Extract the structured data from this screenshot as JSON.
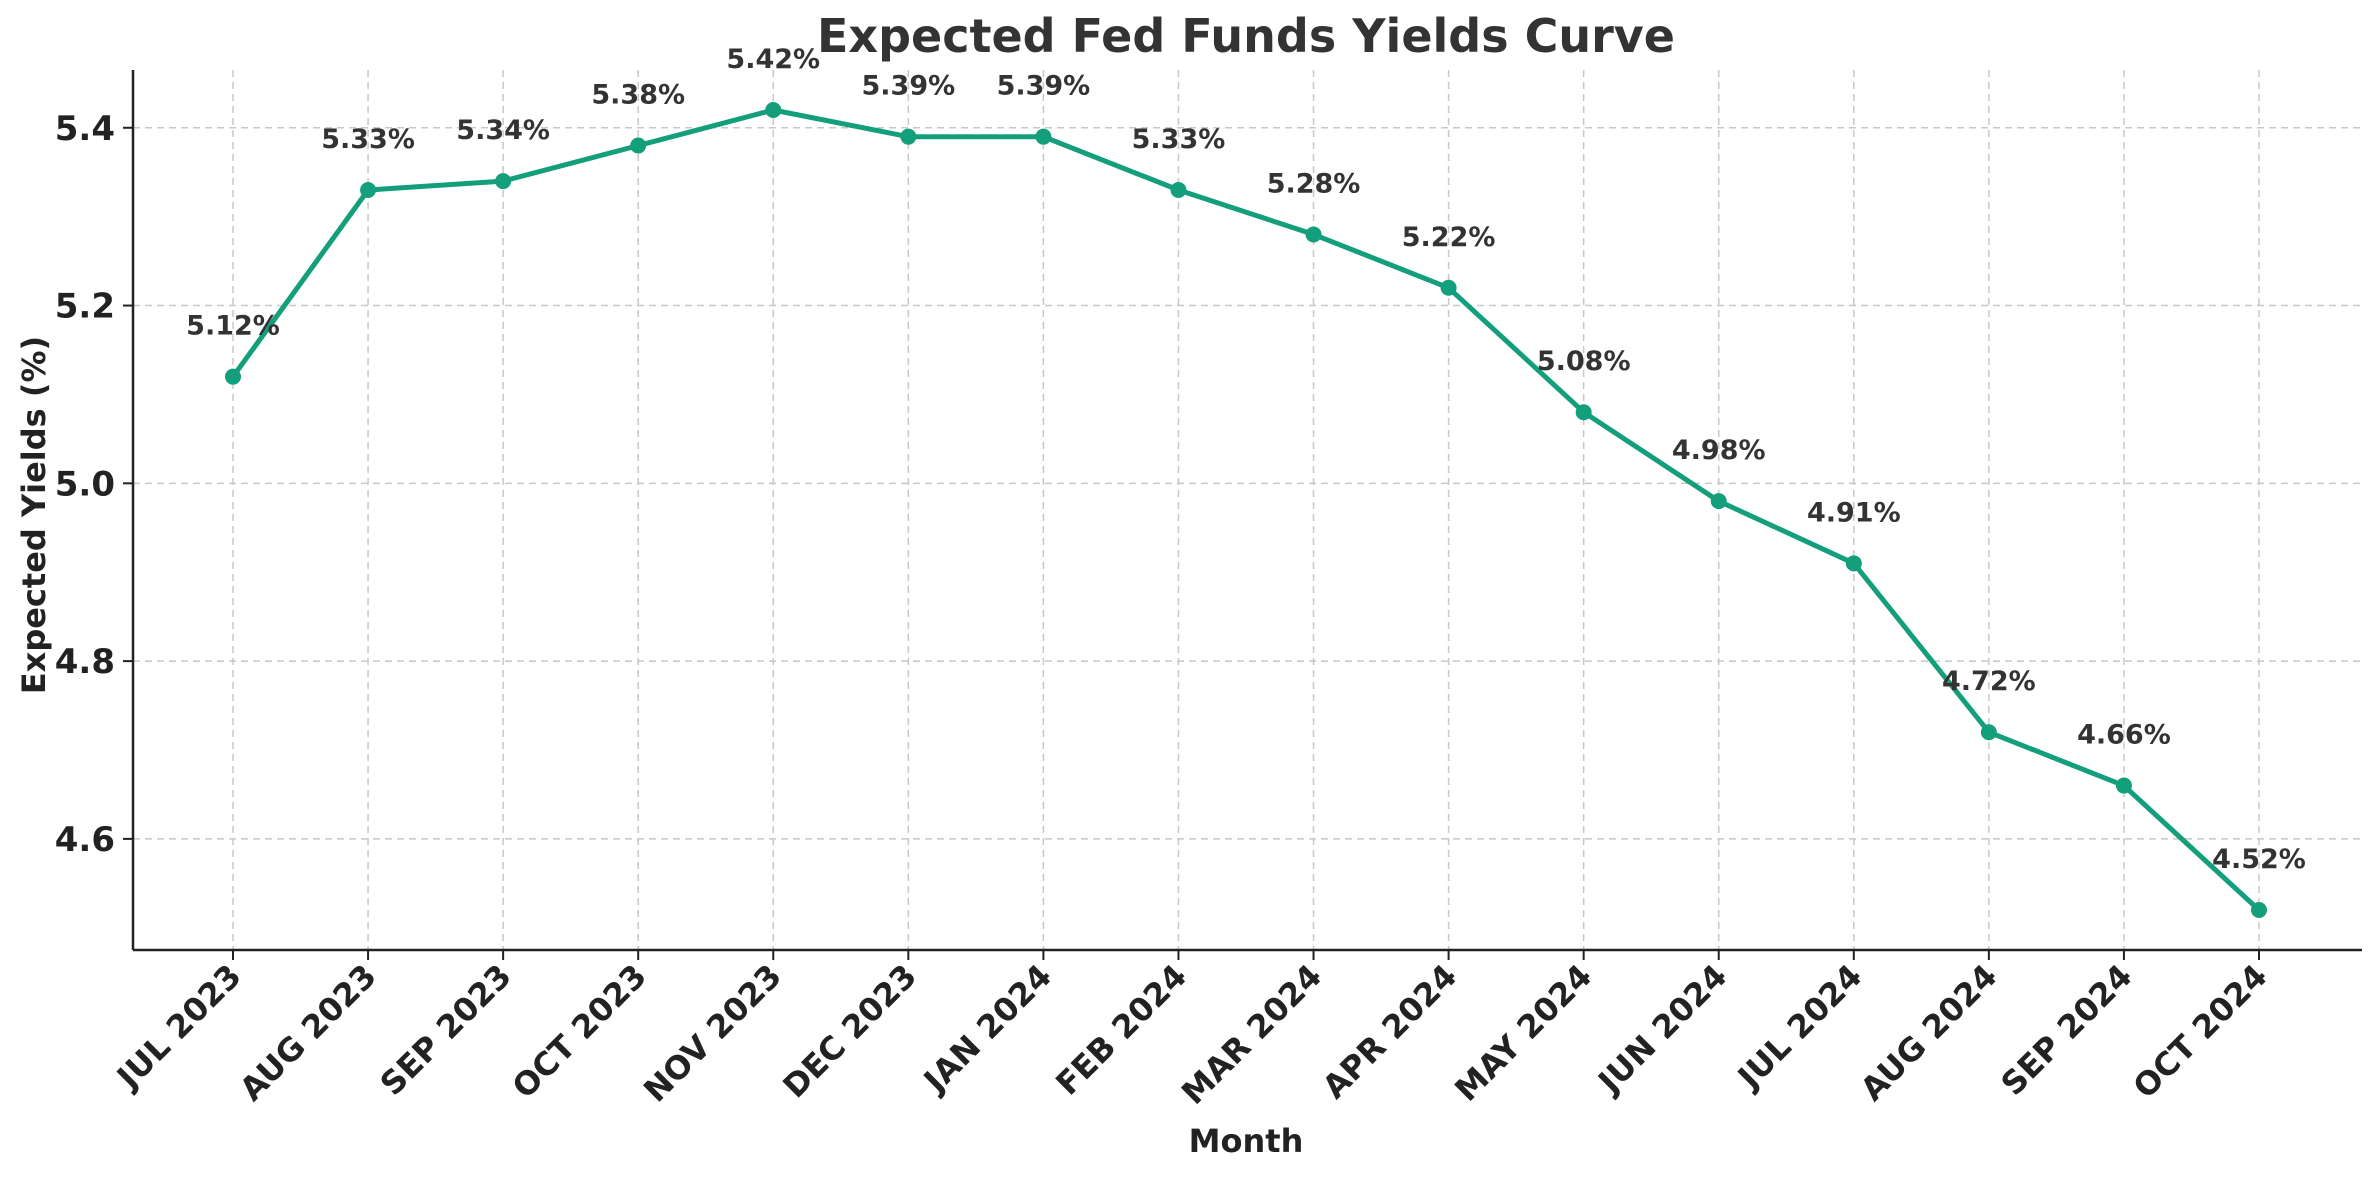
{
  "chart_data": {
    "type": "line",
    "title": "Expected Fed Funds Yields Curve",
    "xlabel": "Month",
    "ylabel": "Expected Yields (%)",
    "categories": [
      "JUL 2023",
      "AUG 2023",
      "SEP 2023",
      "OCT 2023",
      "NOV 2023",
      "DEC 2023",
      "JAN 2024",
      "FEB 2024",
      "MAR 2024",
      "APR 2024",
      "MAY 2024",
      "JUN 2024",
      "JUL 2024",
      "AUG 2024",
      "SEP 2024",
      "OCT 2024"
    ],
    "series": [
      {
        "values": [
          5.12,
          5.33,
          5.34,
          5.38,
          5.42,
          5.39,
          5.39,
          5.33,
          5.28,
          5.22,
          5.08,
          4.98,
          4.91,
          4.72,
          4.66,
          4.52
        ],
        "labels": [
          "5.12%",
          "5.33%",
          "5.34%",
          "5.38%",
          "5.42%",
          "5.39%",
          "5.39%",
          "5.33%",
          "5.28%",
          "5.22%",
          "5.08%",
          "4.98%",
          "4.91%",
          "4.72%",
          "4.66%",
          "4.52%"
        ],
        "color": "#139e7c"
      }
    ],
    "ylim": [
      4.475,
      5.465
    ],
    "yticks": [
      4.6,
      4.8,
      5.0,
      5.2,
      5.4
    ],
    "ytick_labels": [
      "4.6",
      "4.8",
      "5.0",
      "5.2",
      "5.4"
    ],
    "grid": true,
    "legend": "none"
  }
}
